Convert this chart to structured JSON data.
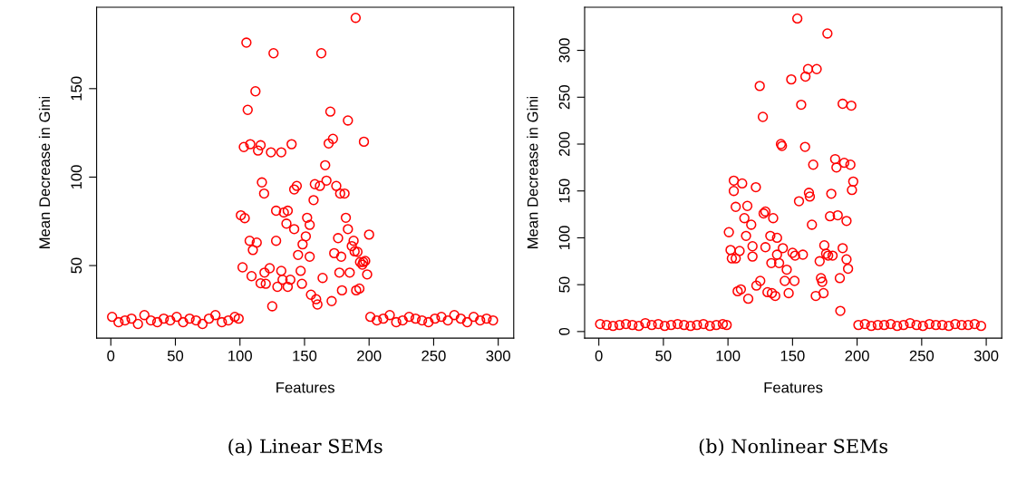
{
  "chart_data": [
    {
      "type": "scatter",
      "title": "(a) Linear SEMs",
      "xlabel": "Features",
      "ylabel": "Mean Decrease in Gini",
      "marker": "circle",
      "xlim": [
        -11,
        312
      ],
      "ylim": [
        9,
        196
      ],
      "xticks": [
        0,
        50,
        100,
        150,
        200,
        250,
        300
      ],
      "yticks": [
        50,
        100,
        150
      ],
      "series": [
        {
          "color": "#ff0000",
          "x": [
            1,
            6,
            11,
            16,
            21,
            26,
            31,
            36,
            41,
            46,
            51,
            56,
            61,
            66,
            71,
            76,
            81,
            86,
            91,
            96,
            99,
            100.7,
            103.7,
            102,
            103,
            105,
            106,
            107.5,
            108,
            110,
            109,
            112,
            113,
            114,
            116,
            116,
            117,
            118.7,
            119,
            120,
            123,
            124,
            126,
            125,
            128,
            128,
            129,
            132,
            132,
            133,
            134,
            136,
            137,
            137,
            139,
            140,
            142,
            142,
            144,
            145,
            147,
            148,
            148.5,
            151,
            152,
            154,
            154,
            155,
            157,
            158,
            159,
            160,
            161.9,
            163,
            164,
            166,
            167,
            168.7,
            170,
            171,
            172,
            173,
            174.6,
            176,
            177,
            177.6,
            178.4,
            179,
            181,
            182,
            183.6,
            183.6,
            185,
            186.6,
            188,
            188.8,
            189.6,
            190,
            191,
            192.5,
            193,
            194.8,
            195.5,
            197,
            196,
            198.5,
            200,
            201,
            206,
            211,
            216,
            221,
            226,
            231,
            236,
            241,
            246,
            251,
            256,
            261,
            266,
            271,
            276,
            281,
            286,
            291,
            296
          ],
          "values": [
            21,
            18,
            19,
            20,
            17,
            22,
            19,
            18,
            20,
            19,
            21,
            18,
            20,
            19,
            17,
            20,
            22,
            18,
            19,
            21,
            20,
            78.4,
            76.8,
            49,
            117,
            176,
            138,
            64,
            118.6,
            58.8,
            44,
            148.5,
            63,
            115,
            118,
            40,
            97,
            90.7,
            46,
            39.7,
            48.5,
            114,
            170,
            27,
            64,
            81,
            38,
            114,
            47,
            42,
            80,
            73.7,
            81,
            38,
            42,
            118.6,
            93,
            70.6,
            95,
            56,
            47,
            39.7,
            62,
            66.5,
            77,
            73,
            55,
            33.5,
            87,
            96,
            31,
            28,
            95,
            170,
            43,
            106.7,
            98,
            119,
            137,
            29.9,
            121.6,
            57,
            95,
            65.5,
            46,
            90.7,
            55,
            36,
            90.7,
            77,
            70.6,
            132,
            46,
            61,
            64,
            58,
            190,
            36,
            57.7,
            37,
            52,
            50.5,
            52,
            52.6,
            120,
            45,
            67.5,
            21,
            19,
            20,
            22,
            18,
            19,
            21,
            20,
            19,
            18,
            20,
            21,
            19,
            22,
            20,
            18,
            21,
            19,
            20,
            19
          ]
        }
      ]
    },
    {
      "type": "scatter",
      "title": "(b) Nonlinear SEMs",
      "xlabel": "Features",
      "ylabel": "Mean Decrease in Gini",
      "marker": "circle",
      "xlim": [
        -11,
        312
      ],
      "ylim": [
        -7,
        346
      ],
      "xticks": [
        0,
        50,
        100,
        150,
        200,
        250,
        300
      ],
      "yticks": [
        0,
        50,
        100,
        150,
        200,
        250,
        300
      ],
      "series": [
        {
          "color": "#ff0000",
          "x": [
            1,
            6,
            11,
            16,
            21,
            26,
            31,
            36,
            41,
            46,
            51,
            56,
            61,
            66,
            71,
            76,
            81,
            86,
            91,
            96,
            99,
            100.7,
            102,
            103,
            104.5,
            104.5,
            106,
            106,
            107.5,
            109,
            110,
            111,
            112.7,
            114,
            115,
            115.7,
            118,
            119,
            119,
            121.6,
            122,
            124.6,
            125,
            127,
            127.6,
            129,
            129,
            130.6,
            132.8,
            133.6,
            134,
            135,
            136.6,
            138,
            138,
            139.6,
            141,
            141.8,
            142.5,
            144,
            145.5,
            147,
            149,
            150,
            151.5,
            152,
            153.7,
            155,
            156.7,
            158,
            159.7,
            160,
            162,
            162.7,
            163.4,
            165,
            166,
            168,
            168.7,
            171,
            172,
            173,
            174,
            174.6,
            176,
            177,
            177.6,
            179,
            180,
            181,
            183,
            184,
            185,
            186.6,
            187,
            188.8,
            188.8,
            190,
            191.8,
            191.8,
            193,
            194.8,
            195.5,
            196,
            197,
            201,
            206,
            211,
            216,
            221,
            226,
            231,
            236,
            241,
            246,
            251,
            256,
            261,
            266,
            271,
            276,
            281,
            286,
            291,
            296
          ],
          "values": [
            8,
            7,
            6,
            7,
            8,
            7,
            6,
            9,
            7,
            8,
            6,
            7,
            8,
            7,
            6,
            7,
            8,
            6,
            7,
            8,
            7,
            106,
            87,
            78,
            150,
            161,
            78,
            133,
            43,
            86,
            45,
            158,
            121,
            102,
            134,
            35,
            114,
            91,
            80,
            154,
            49,
            262,
            54,
            229,
            126,
            128,
            90,
            42,
            102,
            73,
            41,
            121,
            38,
            100,
            82,
            73,
            200,
            198,
            89,
            54,
            66,
            41,
            269,
            84,
            54,
            81,
            334,
            139,
            242,
            82,
            197,
            272,
            280,
            148,
            144,
            114,
            178,
            38,
            280,
            75,
            57,
            53,
            41,
            92,
            83,
            318,
            81,
            123,
            147,
            81,
            184,
            175,
            124,
            57,
            22,
            243,
            89,
            180,
            77,
            118,
            67,
            178,
            241,
            151,
            160,
            7,
            8,
            6,
            7,
            7,
            8,
            6,
            7,
            9,
            7,
            6,
            8,
            7,
            7,
            6,
            8,
            7,
            7,
            8,
            6
          ]
        }
      ]
    }
  ]
}
